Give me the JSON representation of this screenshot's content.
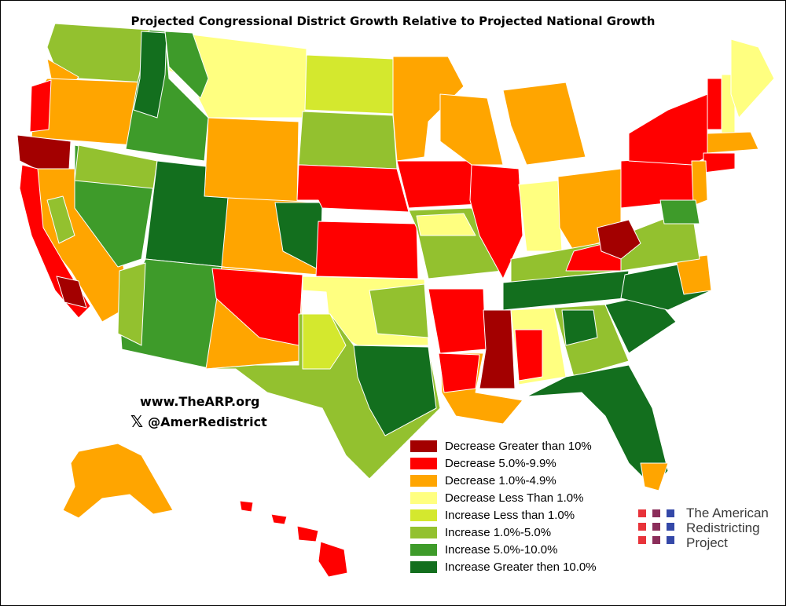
{
  "title": "Projected Congressional District Growth Relative to Projected National Growth",
  "website": "www.TheARP.org",
  "social": {
    "icon": "x-logo-icon",
    "handle": "@AmerRedistrict"
  },
  "colors": {
    "dec_gt10": "#a30000",
    "dec_5_10": "#ff0000",
    "dec_1_5": "#ffa500",
    "dec_lt1": "#ffff80",
    "inc_lt1": "#d4e82e",
    "inc_1_5": "#93c12f",
    "inc_5_10": "#3e9b2a",
    "inc_gt10": "#136f1e",
    "border": "#ffffff",
    "outline": "#000000"
  },
  "legend": [
    {
      "label": "Decrease Greater than 10%",
      "color": "#a30000"
    },
    {
      "label": "Decrease 5.0%-9.9%",
      "color": "#ff0000"
    },
    {
      "label": "Decrease 1.0%-4.9%",
      "color": "#ffa500"
    },
    {
      "label": "Decrease Less Than 1.0%",
      "color": "#ffff80"
    },
    {
      "label": "Increase Less than 1.0%",
      "color": "#d4e82e"
    },
    {
      "label": "Increase 1.0%-5.0%",
      "color": "#93c12f"
    },
    {
      "label": "Increase 5.0%-10.0%",
      "color": "#3e9b2a"
    },
    {
      "label": "Increase Greater then 10.0%",
      "color": "#136f1e"
    }
  ],
  "logo": {
    "lines": [
      "The American",
      "Redistricting",
      "Project"
    ],
    "dot_colors": [
      "#e8333a",
      "#8b2d5a",
      "#3448a8",
      "#e8333a",
      "#8b2d5a",
      "#3448a8",
      "#e8333a",
      "#8b2d5a",
      "#3448a8"
    ]
  }
}
